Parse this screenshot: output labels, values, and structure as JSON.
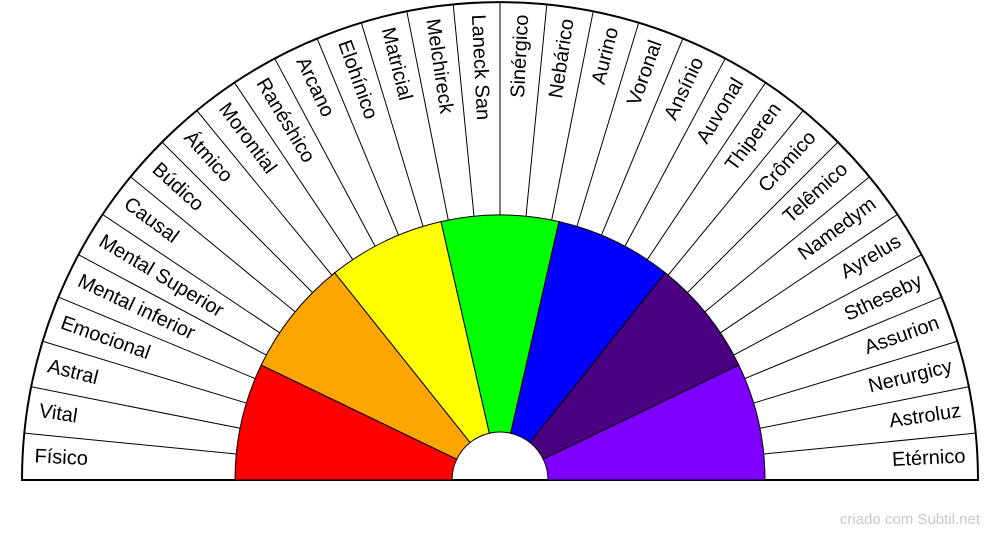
{
  "labels": [
    "Físico",
    "Vital",
    "Astral",
    "Emocional",
    "Mental inferior",
    "Mental Superior",
    "Causal",
    "Búdico",
    "Átmico",
    "Morontial",
    "Ranéshico",
    "Arcano",
    "Elohínico",
    "Matricial",
    "Melchireck",
    "Laneck San",
    "Sinérgico",
    "Nebárico",
    "Aurino",
    "Voronal",
    "Ansínio",
    "Auvonal",
    "Thiperen",
    "Crômico",
    "Telêmico",
    "Namedym",
    "Ayrelus",
    "Stheseby",
    "Assurion",
    "Nerurgicy",
    "Astroluz",
    "Etérnico"
  ],
  "footer": "criado com Subtil.net"
}
